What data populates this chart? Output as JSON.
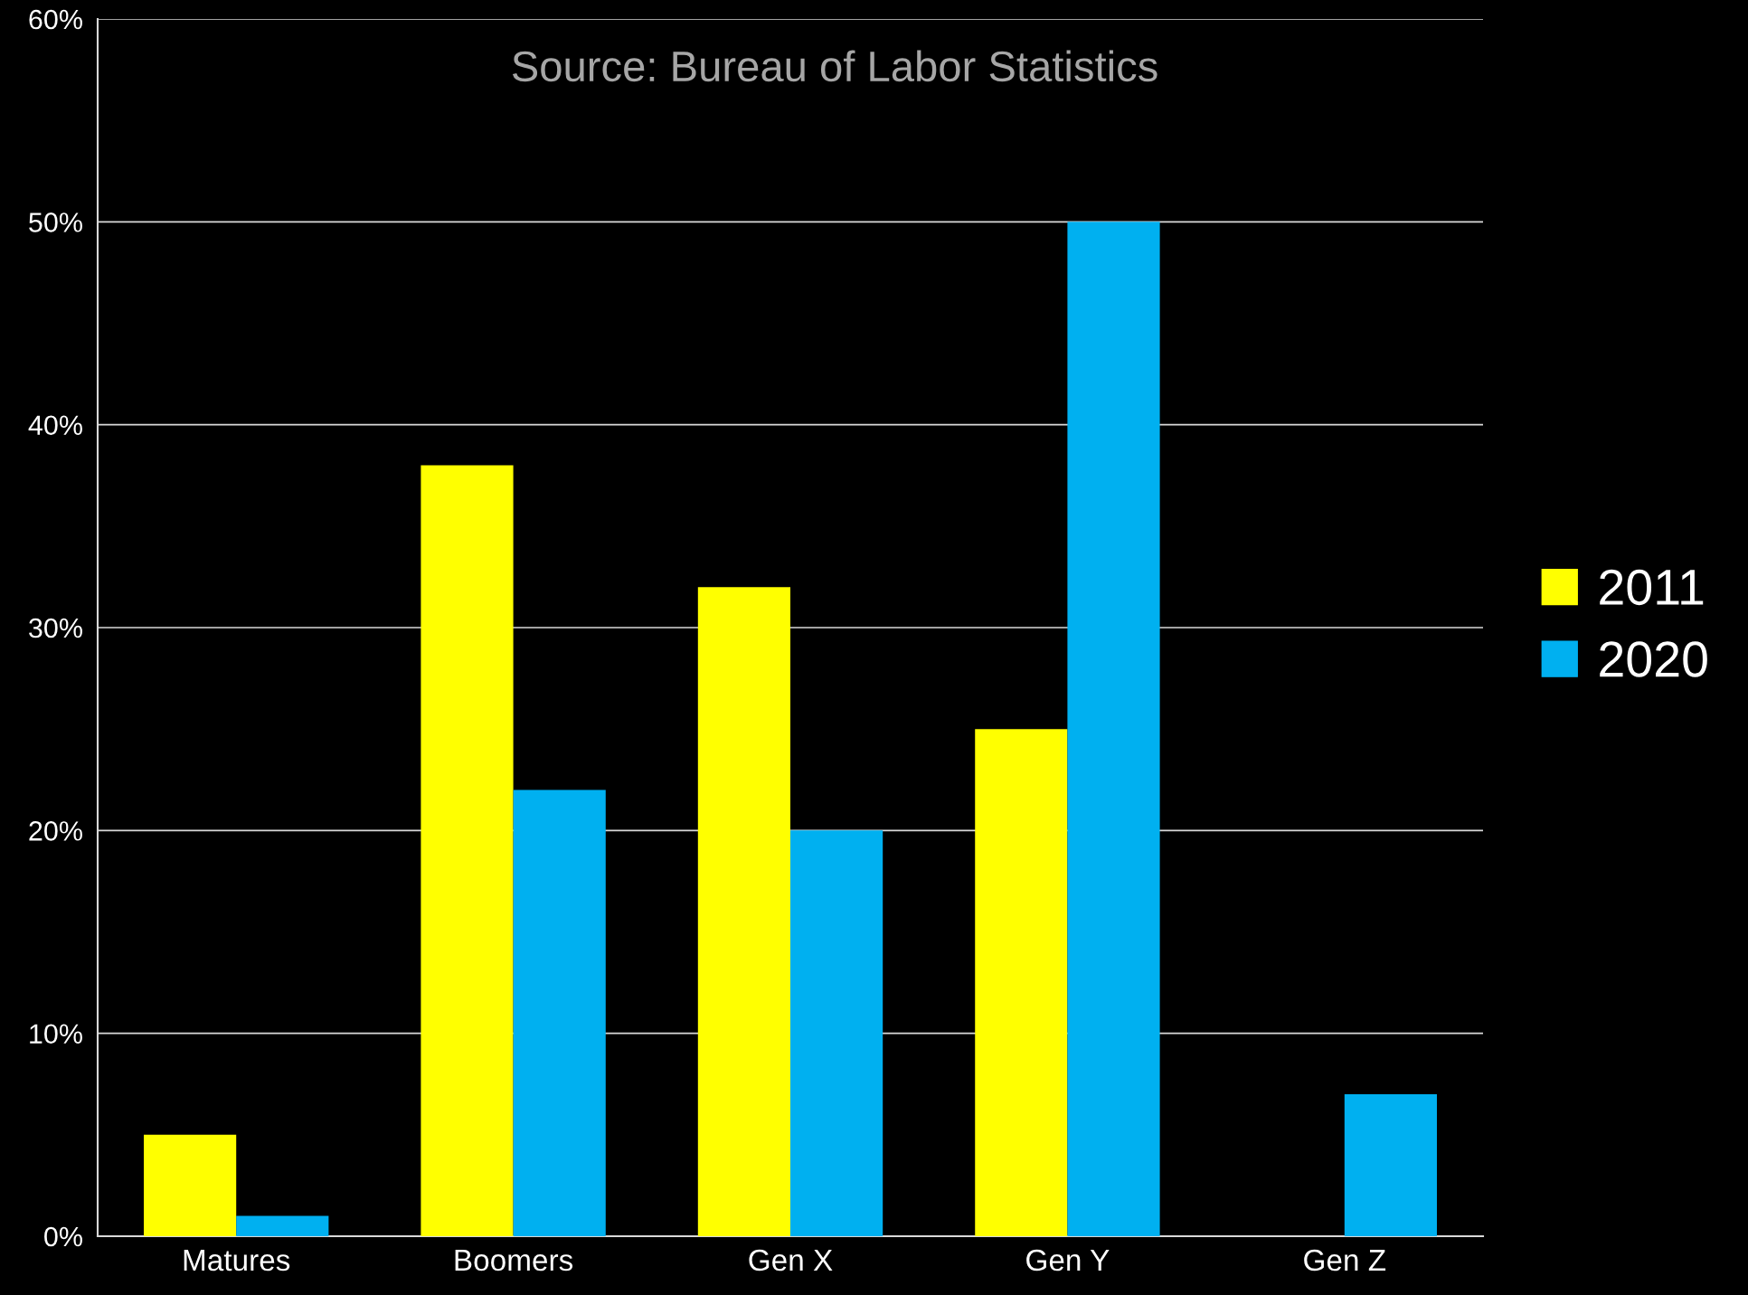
{
  "chart_data": {
    "type": "bar",
    "categories": [
      "Matures",
      "Boomers",
      "Gen X",
      "Gen Y",
      "Gen Z"
    ],
    "series": [
      {
        "name": "2011",
        "color": "#ffff00",
        "values": [
          5,
          38,
          32,
          25,
          null
        ]
      },
      {
        "name": "2020",
        "color": "#00b0f0",
        "values": [
          1,
          22,
          20,
          50,
          7
        ]
      }
    ],
    "ylim": [
      0,
      60
    ],
    "yticks": [
      {
        "value": 0,
        "label": "0%"
      },
      {
        "value": 10,
        "label": "10%"
      },
      {
        "value": 20,
        "label": "20%"
      },
      {
        "value": 30,
        "label": "30%"
      },
      {
        "value": 40,
        "label": "40%"
      },
      {
        "value": 50,
        "label": "50%"
      },
      {
        "value": 60,
        "label": "60%"
      }
    ],
    "grid": "y",
    "legend": "right",
    "annotations": [
      "Source: Bureau of Labor Statistics"
    ]
  }
}
